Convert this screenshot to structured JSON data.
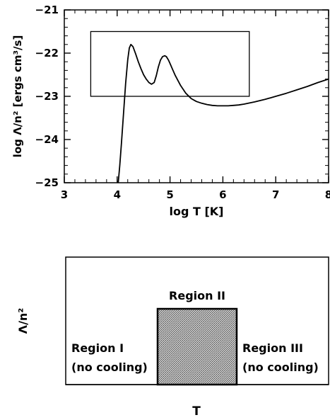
{
  "chart_data": [
    {
      "type": "line",
      "xlabel": "log T [K]",
      "ylabel": "log Λ/n² [ergs cm³/s]",
      "xlim": [
        3,
        8
      ],
      "ylim": [
        -25,
        -21
      ],
      "x_ticks": [
        "3",
        "4",
        "5",
        "6",
        "7",
        "8"
      ],
      "y_ticks": [
        "-21",
        "-22",
        "-23",
        "-24",
        "-25"
      ],
      "series": [
        {
          "x": [
            4.02,
            4.05,
            4.08,
            4.12,
            4.16,
            4.2,
            4.23,
            4.26,
            4.3,
            4.35,
            4.4,
            4.45,
            4.5,
            4.55,
            4.6,
            4.65,
            4.7,
            4.74,
            4.78,
            4.82,
            4.86,
            4.9,
            4.93,
            4.97,
            5.0,
            5.05,
            5.1,
            5.2,
            5.3,
            5.4,
            5.5,
            5.6,
            5.7,
            5.8,
            5.9,
            6.0,
            6.1,
            6.2,
            6.3,
            6.4,
            6.6,
            6.8,
            7.0,
            7.2,
            7.4,
            7.6,
            7.8,
            8.0
          ],
          "y": [
            -25.0,
            -24.6,
            -24.1,
            -23.4,
            -22.7,
            -22.15,
            -21.88,
            -21.8,
            -21.85,
            -22.02,
            -22.2,
            -22.36,
            -22.5,
            -22.6,
            -22.68,
            -22.72,
            -22.68,
            -22.52,
            -22.32,
            -22.16,
            -22.08,
            -22.06,
            -22.08,
            -22.16,
            -22.24,
            -22.38,
            -22.52,
            -22.75,
            -22.93,
            -23.05,
            -23.12,
            -23.16,
            -23.19,
            -23.21,
            -23.22,
            -23.22,
            -23.22,
            -23.21,
            -23.2,
            -23.18,
            -23.13,
            -23.07,
            -23.0,
            -22.93,
            -22.85,
            -22.77,
            -22.68,
            -22.6
          ]
        }
      ],
      "annotations": [
        {
          "type": "rectangle",
          "x": [
            3.5,
            6.5
          ],
          "y": [
            -23.0,
            -21.5
          ]
        }
      ]
    },
    {
      "type": "area",
      "xlabel": "T",
      "ylabel": "Λ/n²",
      "annotations": [
        "Region II",
        "Region I",
        "(no cooling)",
        "Region III",
        "(no cooling)"
      ],
      "series": [
        {
          "x": [
            "Region I",
            "Region II",
            "Region III"
          ],
          "values": [
            0,
            1,
            0
          ]
        }
      ],
      "fill_color": "#8c8c8c"
    }
  ]
}
